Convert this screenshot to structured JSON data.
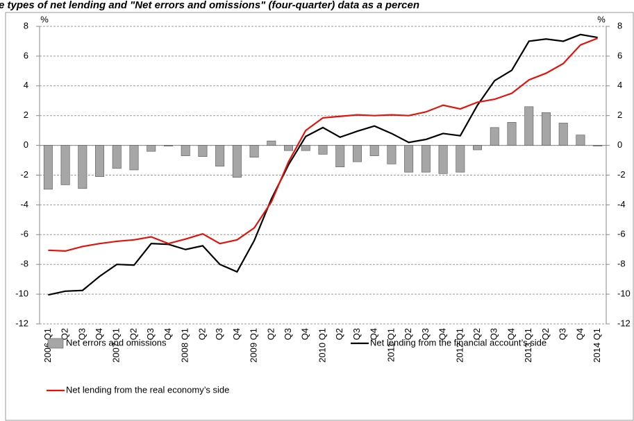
{
  "chart_data": {
    "type": "combo",
    "title": "e types of net lending and \"Net errors and omissions\" (four-quarter) data as a percen",
    "y_unit": "%",
    "y2_unit": "%",
    "categories": [
      "2006 Q1",
      "Q2",
      "Q3",
      "Q4",
      "2007 Q1",
      "Q2",
      "Q3",
      "Q4",
      "2008 Q1",
      "Q2",
      "Q3",
      "Q4",
      "2009 Q1",
      "Q2",
      "Q3",
      "Q4",
      "2010 Q1",
      "Q2",
      "Q3",
      "Q4",
      "2011 Q1",
      "Q2",
      "Q3",
      "Q4",
      "2012 Q1",
      "Q2",
      "Q3",
      "Q4",
      "2013 Q1",
      "Q2",
      "Q3",
      "Q4",
      "2014 Q1"
    ],
    "ylim": [
      -12,
      8
    ],
    "yticks": [
      -12,
      -10,
      -8,
      -6,
      -4,
      -2,
      0,
      2,
      4,
      6,
      8
    ],
    "y2lim": [
      -12,
      8
    ],
    "y2ticks": [
      -12,
      -10,
      -8,
      -6,
      -4,
      -2,
      0,
      2,
      4,
      6,
      8
    ],
    "grid": true,
    "series": [
      {
        "name": "Net errors and omissions",
        "type": "bar",
        "color": "#a6a6a6",
        "values": [
          -2.95,
          -2.65,
          -2.9,
          -2.1,
          -1.55,
          -1.65,
          -0.4,
          -0.05,
          -0.7,
          -0.75,
          -1.4,
          -2.15,
          -0.8,
          0.3,
          -0.35,
          -0.35,
          -0.6,
          -1.45,
          -1.1,
          -0.7,
          -1.25,
          -1.8,
          -1.8,
          -1.9,
          -1.8,
          -0.3,
          1.2,
          1.55,
          2.6,
          2.2,
          1.5,
          0.7,
          -0.05
        ]
      },
      {
        "name": "Net lending from the financial account’s side",
        "type": "line",
        "color": "#000000",
        "values": [
          -10.05,
          -9.8,
          -9.75,
          -8.8,
          -8.0,
          -8.05,
          -6.6,
          -6.65,
          -7.0,
          -6.75,
          -8.0,
          -8.5,
          -6.4,
          -3.6,
          -1.3,
          0.6,
          1.2,
          0.55,
          0.95,
          1.3,
          0.8,
          0.2,
          0.4,
          0.8,
          0.65,
          2.7,
          4.35,
          5.05,
          7.0,
          7.15,
          7.0,
          7.45,
          7.25
        ]
      },
      {
        "name": "Net lending from the real economy’s side",
        "type": "line",
        "color": "#e3120b",
        "values": [
          -7.05,
          -7.1,
          -6.8,
          -6.6,
          -6.45,
          -6.35,
          -6.15,
          -6.6,
          -6.3,
          -5.95,
          -6.6,
          -6.35,
          -5.55,
          -3.8,
          -1.1,
          1.0,
          1.85,
          1.95,
          2.05,
          2.0,
          2.05,
          2.0,
          2.25,
          2.7,
          2.45,
          2.9,
          3.1,
          3.5,
          4.4,
          4.85,
          5.5,
          6.75,
          7.2
        ]
      }
    ]
  }
}
